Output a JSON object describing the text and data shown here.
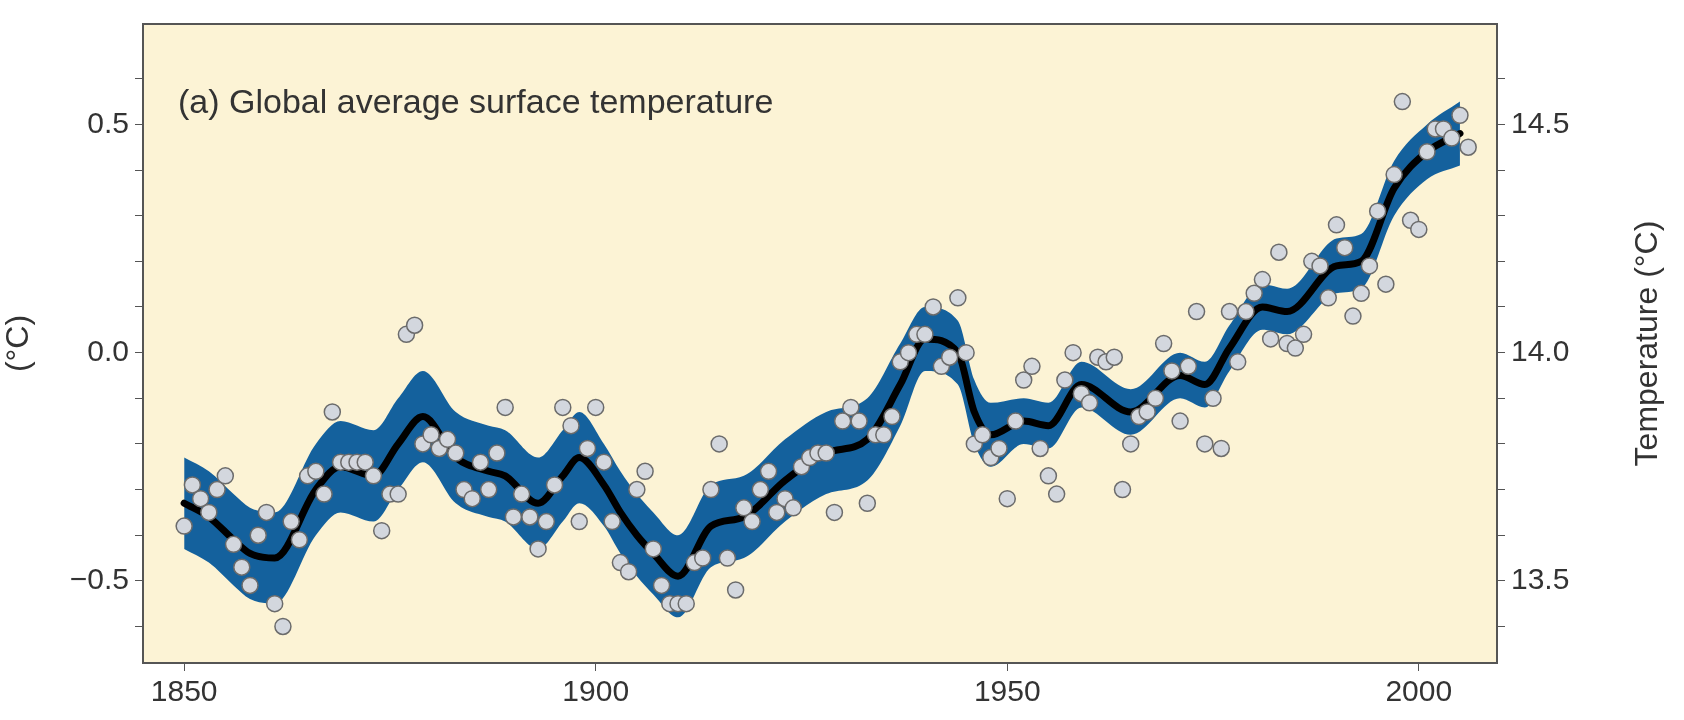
{
  "chart_data": {
    "type": "scatter",
    "title": "(a) Global average surface temperature",
    "ylabel": "(°C)",
    "y2label": "Temperature (°C)",
    "xlim": [
      1845,
      2009.5
    ],
    "xticks": [
      1850,
      1900,
      1950,
      2000
    ],
    "ylim": [
      -0.68,
      0.72
    ],
    "yticks": [
      {
        "value": -0.6,
        "label": null
      },
      {
        "value": -0.5,
        "label": "−0.5"
      },
      {
        "value": -0.4,
        "label": null
      },
      {
        "value": -0.3,
        "label": null
      },
      {
        "value": -0.2,
        "label": null
      },
      {
        "value": -0.1,
        "label": null
      },
      {
        "value": 0,
        "label": "0.0"
      },
      {
        "value": 0.1,
        "label": null
      },
      {
        "value": 0.2,
        "label": null
      },
      {
        "value": 0.3,
        "label": null
      },
      {
        "value": 0.4,
        "label": null
      },
      {
        "value": 0.5,
        "label": "0.5"
      },
      {
        "value": 0.6,
        "label": null
      }
    ],
    "y2lim": [
      13.32,
      14.72
    ],
    "y2ticks": [
      {
        "value": 13.4,
        "label": null
      },
      {
        "value": 13.5,
        "label": "13.5"
      },
      {
        "value": 13.6,
        "label": null
      },
      {
        "value": 13.7,
        "label": null
      },
      {
        "value": 13.8,
        "label": null
      },
      {
        "value": 13.9,
        "label": null
      },
      {
        "value": 14.0,
        "label": "14.0"
      },
      {
        "value": 14.1,
        "label": null
      },
      {
        "value": 14.2,
        "label": null
      },
      {
        "value": 14.3,
        "label": null
      },
      {
        "value": 14.4,
        "label": null
      },
      {
        "value": 14.5,
        "label": "14.5"
      },
      {
        "value": 14.6,
        "label": null
      }
    ],
    "grid": false,
    "legend": false,
    "series": [
      {
        "type": "line",
        "color": "#000000",
        "marker": "none",
        "x": [
          1850,
          1853,
          1856,
          1858,
          1861,
          1866,
          1869,
          1873,
          1876,
          1879,
          1883,
          1887,
          1889,
          1893,
          1896,
          1898,
          1901,
          1903,
          1905,
          1907,
          1910,
          1914,
          1918,
          1923,
          1928,
          1933,
          1937,
          1940,
          1944,
          1946,
          1948,
          1952,
          1955,
          1959,
          1965,
          1971,
          1974,
          1977,
          1981,
          1984,
          1990,
          1993,
          1997,
          2001,
          2005
        ],
        "values": [
          -0.33,
          -0.36,
          -0.41,
          -0.44,
          -0.45,
          -0.3,
          -0.25,
          -0.27,
          -0.2,
          -0.14,
          -0.23,
          -0.26,
          -0.27,
          -0.33,
          -0.27,
          -0.23,
          -0.29,
          -0.35,
          -0.4,
          -0.44,
          -0.49,
          -0.38,
          -0.36,
          -0.28,
          -0.22,
          -0.19,
          -0.07,
          0.03,
          0.0,
          -0.13,
          -0.18,
          -0.15,
          -0.16,
          -0.07,
          -0.13,
          -0.05,
          -0.07,
          0.01,
          0.1,
          0.09,
          0.19,
          0.2,
          0.36,
          0.44,
          0.48
        ],
        "lower": [
          -0.43,
          -0.46,
          -0.51,
          -0.54,
          -0.55,
          -0.4,
          -0.35,
          -0.37,
          -0.3,
          -0.24,
          -0.33,
          -0.36,
          -0.37,
          -0.43,
          -0.37,
          -0.33,
          -0.38,
          -0.44,
          -0.49,
          -0.53,
          -0.58,
          -0.47,
          -0.45,
          -0.37,
          -0.31,
          -0.28,
          -0.16,
          -0.04,
          -0.07,
          -0.2,
          -0.25,
          -0.2,
          -0.21,
          -0.12,
          -0.18,
          -0.1,
          -0.12,
          -0.04,
          0.05,
          0.04,
          0.13,
          0.14,
          0.3,
          0.38,
          0.41
        ],
        "upper": [
          -0.23,
          -0.26,
          -0.31,
          -0.34,
          -0.35,
          -0.2,
          -0.15,
          -0.17,
          -0.1,
          -0.04,
          -0.13,
          -0.16,
          -0.17,
          -0.23,
          -0.17,
          -0.13,
          -0.2,
          -0.26,
          -0.31,
          -0.35,
          -0.4,
          -0.29,
          -0.27,
          -0.19,
          -0.13,
          -0.1,
          0.02,
          0.1,
          0.07,
          -0.06,
          -0.11,
          -0.1,
          -0.11,
          -0.02,
          -0.08,
          0.0,
          -0.02,
          0.06,
          0.15,
          0.14,
          0.25,
          0.26,
          0.42,
          0.5,
          0.55
        ]
      },
      {
        "type": "scatter",
        "color": "#d3d7de",
        "marker": "circle",
        "x": [
          1850,
          1851,
          1852,
          1853,
          1854,
          1855,
          1856,
          1857,
          1858,
          1859,
          1860,
          1861,
          1862,
          1863,
          1864,
          1865,
          1866,
          1867,
          1868,
          1869,
          1870,
          1871,
          1872,
          1873,
          1874,
          1875,
          1876,
          1877,
          1878,
          1879,
          1880,
          1881,
          1882,
          1883,
          1884,
          1885,
          1886,
          1887,
          1888,
          1889,
          1890,
          1891,
          1892,
          1893,
          1894,
          1895,
          1896,
          1897,
          1898,
          1899,
          1900,
          1901,
          1902,
          1903,
          1904,
          1905,
          1906,
          1907,
          1908,
          1909,
          1910,
          1911,
          1912,
          1913,
          1914,
          1915,
          1916,
          1917,
          1918,
          1919,
          1920,
          1921,
          1922,
          1923,
          1924,
          1925,
          1926,
          1927,
          1928,
          1929,
          1930,
          1931,
          1932,
          1933,
          1934,
          1935,
          1936,
          1937,
          1938,
          1939,
          1940,
          1941,
          1942,
          1943,
          1944,
          1945,
          1946,
          1947,
          1948,
          1949,
          1950,
          1951,
          1952,
          1953,
          1954,
          1955,
          1956,
          1957,
          1958,
          1959,
          1960,
          1961,
          1962,
          1963,
          1964,
          1965,
          1966,
          1967,
          1968,
          1969,
          1970,
          1971,
          1972,
          1973,
          1974,
          1975,
          1976,
          1977,
          1978,
          1979,
          1980,
          1981,
          1982,
          1983,
          1984,
          1985,
          1986,
          1987,
          1988,
          1989,
          1990,
          1991,
          1992,
          1993,
          1994,
          1995,
          1996,
          1997,
          1998,
          1999,
          2000,
          2001,
          2002,
          2003,
          2004,
          2005,
          2006
        ],
        "values": [
          -0.38,
          -0.29,
          -0.32,
          -0.35,
          -0.3,
          -0.27,
          -0.42,
          -0.47,
          -0.51,
          -0.4,
          -0.35,
          -0.55,
          -0.6,
          -0.37,
          -0.41,
          -0.27,
          -0.26,
          -0.31,
          -0.13,
          -0.24,
          -0.24,
          -0.24,
          -0.24,
          -0.27,
          -0.39,
          -0.31,
          -0.31,
          0.04,
          0.06,
          -0.2,
          -0.18,
          -0.21,
          -0.19,
          -0.22,
          -0.3,
          -0.32,
          -0.24,
          -0.3,
          -0.22,
          -0.12,
          -0.36,
          -0.31,
          -0.36,
          -0.43,
          -0.37,
          -0.29,
          -0.12,
          -0.16,
          -0.37,
          -0.21,
          -0.12,
          -0.24,
          -0.37,
          -0.46,
          -0.48,
          -0.3,
          -0.26,
          -0.43,
          -0.51,
          -0.55,
          -0.55,
          -0.55,
          -0.46,
          -0.45,
          -0.3,
          -0.2,
          -0.45,
          -0.52,
          -0.34,
          -0.37,
          -0.3,
          -0.26,
          -0.35,
          -0.32,
          -0.34,
          -0.25,
          -0.23,
          -0.22,
          -0.22,
          -0.35,
          -0.15,
          -0.12,
          -0.15,
          -0.33,
          -0.18,
          -0.18,
          -0.14,
          -0.02,
          0.0,
          0.04,
          0.04,
          0.1,
          -0.03,
          -0.01,
          0.12,
          0.0,
          -0.2,
          -0.18,
          -0.23,
          -0.21,
          -0.32,
          -0.15,
          -0.06,
          -0.03,
          -0.21,
          -0.27,
          -0.31,
          -0.06,
          0.0,
          -0.09,
          -0.11,
          -0.01,
          -0.02,
          -0.01,
          -0.3,
          -0.2,
          -0.14,
          -0.13,
          -0.1,
          0.02,
          -0.04,
          -0.15,
          -0.03,
          0.09,
          -0.2,
          -0.1,
          -0.21,
          0.09,
          -0.02,
          0.09,
          0.13,
          0.16,
          0.03,
          0.22,
          0.02,
          0.01,
          0.04,
          0.2,
          0.19,
          0.12,
          0.28,
          0.23,
          0.08,
          0.13,
          0.19,
          0.31,
          0.15,
          0.39,
          0.55,
          0.29,
          0.27,
          0.44,
          0.49,
          0.49,
          0.47,
          0.52,
          0.45
        ]
      }
    ]
  }
}
